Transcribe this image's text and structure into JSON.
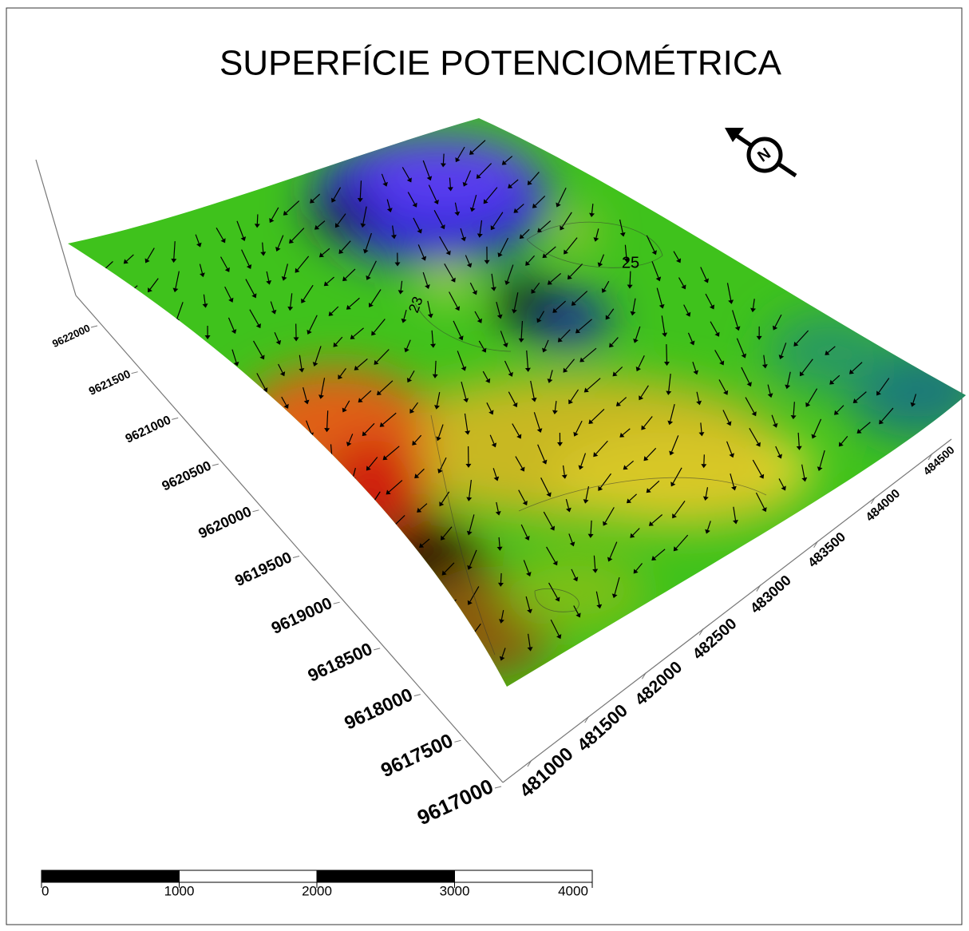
{
  "title": "SUPERFÍCIE POTENCIOMÉTRICA",
  "north_arrow": {
    "label": "N"
  },
  "northing_axis": {
    "ticks": [
      9622000,
      9621500,
      9621000,
      9620500,
      9620000,
      9619500,
      9619000,
      9618500,
      9618000,
      9617500,
      9617000
    ]
  },
  "easting_axis": {
    "ticks": [
      481000,
      481500,
      482000,
      482500,
      483000,
      483500,
      484000,
      484500
    ]
  },
  "contour_labels": [
    "25",
    "23"
  ],
  "scale_bar": {
    "ticks": [
      0,
      1000,
      2000,
      3000,
      4000
    ]
  }
}
